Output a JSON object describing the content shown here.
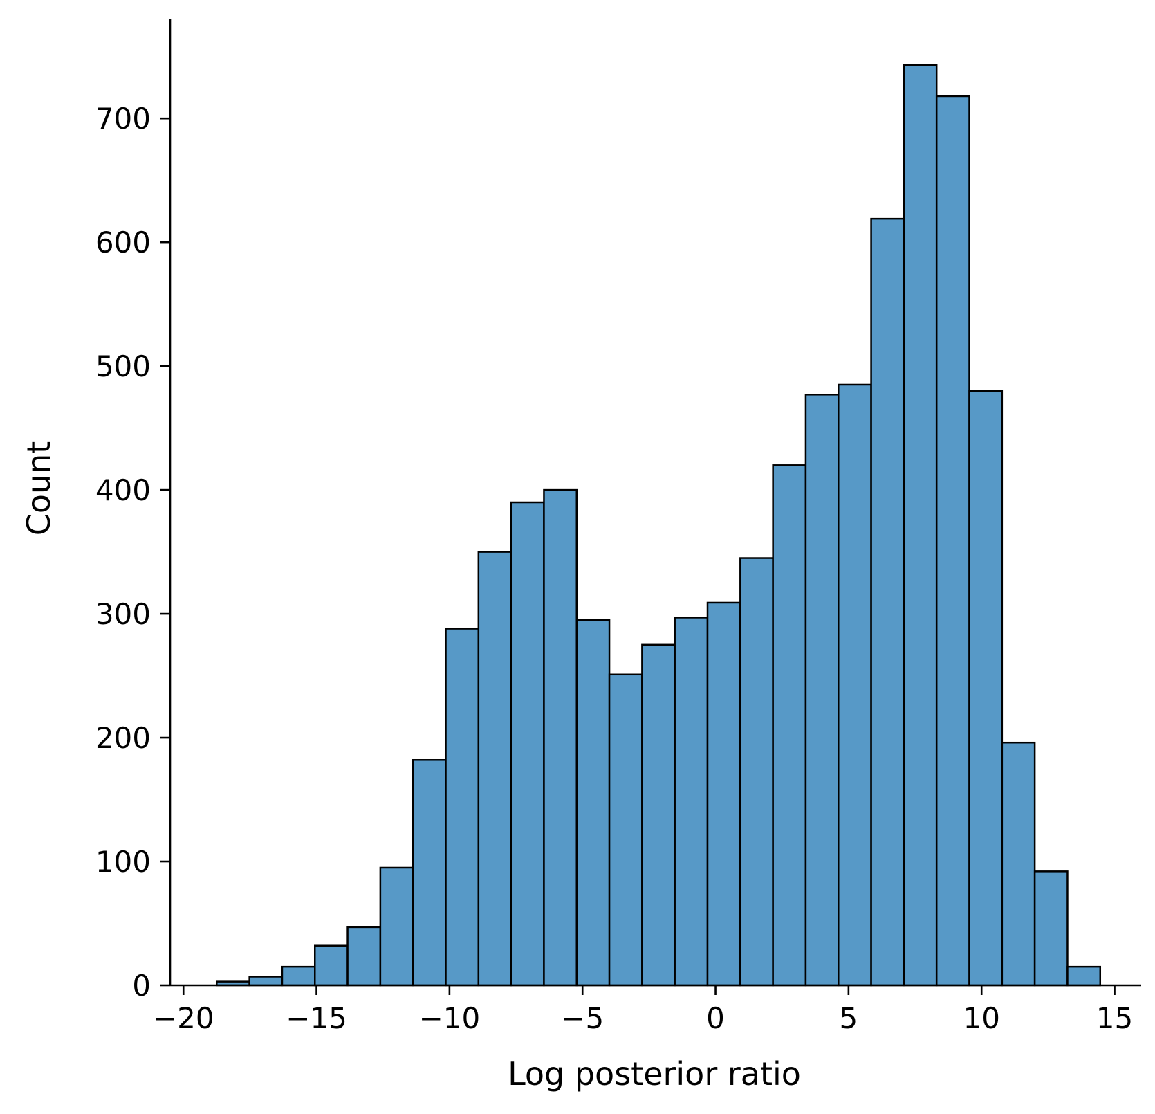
{
  "chart_data": {
    "type": "bar",
    "subtype": "histogram",
    "xlabel": "Log posterior ratio",
    "ylabel": "Count",
    "xlim": [
      -20.5,
      16
    ],
    "ylim": [
      0,
      780
    ],
    "x_ticks": [
      {
        "value": -20,
        "label": "−20"
      },
      {
        "value": -15,
        "label": "−15"
      },
      {
        "value": -10,
        "label": "−10"
      },
      {
        "value": -5,
        "label": "−5"
      },
      {
        "value": 0,
        "label": "0"
      },
      {
        "value": 5,
        "label": "5"
      },
      {
        "value": 10,
        "label": "10"
      },
      {
        "value": 15,
        "label": "15"
      }
    ],
    "y_ticks": [
      {
        "value": 0,
        "label": "0"
      },
      {
        "value": 100,
        "label": "100"
      },
      {
        "value": 200,
        "label": "200"
      },
      {
        "value": 300,
        "label": "300"
      },
      {
        "value": 400,
        "label": "400"
      },
      {
        "value": 500,
        "label": "500"
      },
      {
        "value": 600,
        "label": "600"
      },
      {
        "value": 700,
        "label": "700"
      }
    ],
    "bins": [
      {
        "x0": -18.75,
        "x1": -17.52,
        "count": 3
      },
      {
        "x0": -17.52,
        "x1": -16.29,
        "count": 7
      },
      {
        "x0": -16.29,
        "x1": -15.06,
        "count": 15
      },
      {
        "x0": -15.06,
        "x1": -13.83,
        "count": 32
      },
      {
        "x0": -13.83,
        "x1": -12.6,
        "count": 47
      },
      {
        "x0": -12.6,
        "x1": -11.37,
        "count": 95
      },
      {
        "x0": -11.37,
        "x1": -10.14,
        "count": 182
      },
      {
        "x0": -10.14,
        "x1": -8.91,
        "count": 288
      },
      {
        "x0": -8.91,
        "x1": -7.68,
        "count": 350
      },
      {
        "x0": -7.68,
        "x1": -6.45,
        "count": 390
      },
      {
        "x0": -6.45,
        "x1": -5.22,
        "count": 400
      },
      {
        "x0": -5.22,
        "x1": -3.99,
        "count": 295
      },
      {
        "x0": -3.99,
        "x1": -2.76,
        "count": 251
      },
      {
        "x0": -2.76,
        "x1": -1.53,
        "count": 275
      },
      {
        "x0": -1.53,
        "x1": -0.3,
        "count": 297
      },
      {
        "x0": -0.3,
        "x1": 0.93,
        "count": 309
      },
      {
        "x0": 0.93,
        "x1": 2.16,
        "count": 345
      },
      {
        "x0": 2.16,
        "x1": 3.39,
        "count": 420
      },
      {
        "x0": 3.39,
        "x1": 4.62,
        "count": 477
      },
      {
        "x0": 4.62,
        "x1": 5.85,
        "count": 485
      },
      {
        "x0": 5.85,
        "x1": 7.08,
        "count": 619
      },
      {
        "x0": 7.08,
        "x1": 8.31,
        "count": 743
      },
      {
        "x0": 8.31,
        "x1": 9.54,
        "count": 718
      },
      {
        "x0": 9.54,
        "x1": 10.77,
        "count": 480
      },
      {
        "x0": 10.77,
        "x1": 12.0,
        "count": 196
      },
      {
        "x0": 12.0,
        "x1": 13.23,
        "count": 92
      },
      {
        "x0": 13.23,
        "x1": 14.46,
        "count": 15
      }
    ],
    "bar_color": "#5799c7",
    "edge_color": "#000000",
    "grid": false
  }
}
